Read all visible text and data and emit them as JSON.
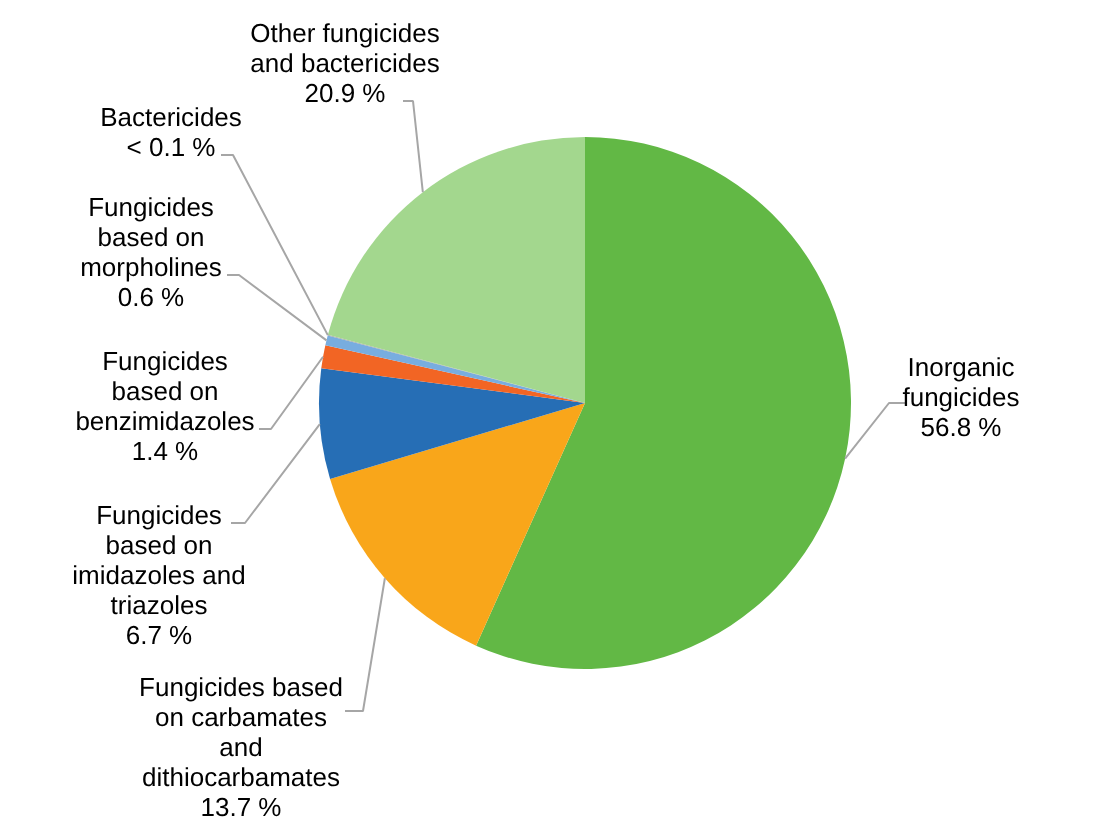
{
  "chart_data": {
    "type": "pie",
    "categories": [
      "Inorganic fungicides",
      "Fungicides based on carbamates and dithiocarbamates",
      "Fungicides based on imidazoles and triazoles",
      "Fungicides based on benzimidazoles",
      "Fungicides based on morpholines",
      "Bactericides",
      "Other fungicides and bactericides"
    ],
    "values": [
      56.8,
      13.7,
      6.7,
      1.4,
      0.6,
      0.05,
      20.9
    ],
    "value_labels": [
      "56.8 %",
      "13.7 %",
      "6.7 %",
      "1.4 %",
      "0.6 %",
      "< 0.1 %",
      "20.9 %"
    ],
    "colors": [
      "#62b845",
      "#f9a61a",
      "#266eb5",
      "#f26524",
      "#78addf",
      "#a5a5a5",
      "#a3d78e"
    ]
  }
}
